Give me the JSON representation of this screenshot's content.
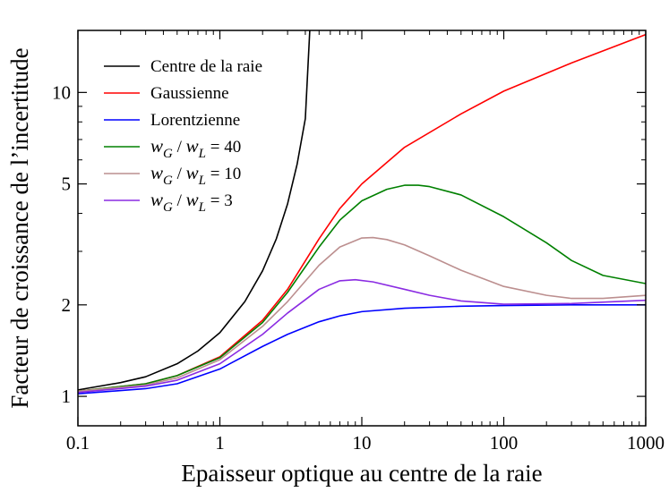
{
  "chart_data": {
    "type": "line",
    "xlabel": "Epaisseur optique au centre de la raie",
    "ylabel": "Facteur de croissance de l’incertitude",
    "xscale": "log",
    "yscale": "log",
    "xlim": [
      0.1,
      1000
    ],
    "ylim": [
      0.8,
      16
    ],
    "x_ticks": [
      {
        "value": 0.1,
        "label": "0.1"
      },
      {
        "value": 1,
        "label": "1"
      },
      {
        "value": 10,
        "label": "10"
      },
      {
        "value": 100,
        "label": "100"
      },
      {
        "value": 1000,
        "label": "1000"
      }
    ],
    "y_ticks": [
      {
        "value": 1,
        "label": "1"
      },
      {
        "value": 2,
        "label": "2"
      },
      {
        "value": 5,
        "label": "5"
      },
      {
        "value": 10,
        "label": "10"
      }
    ],
    "legend_position": "top-left",
    "series": [
      {
        "name": "Centre de la raie",
        "color": "#000000",
        "x": [
          0.1,
          0.2,
          0.3,
          0.5,
          0.7,
          1,
          1.5,
          2,
          2.5,
          3,
          3.5,
          4,
          4.3
        ],
        "y": [
          1.05,
          1.11,
          1.16,
          1.28,
          1.41,
          1.62,
          2.05,
          2.59,
          3.3,
          4.3,
          5.8,
          8.2,
          16
        ]
      },
      {
        "name": "Gaussienne",
        "color": "#ff0000",
        "legend_label": "Gaussienne",
        "x": [
          0.1,
          0.3,
          0.5,
          1,
          2,
          3,
          5,
          7,
          10,
          20,
          50,
          100,
          300,
          1000
        ],
        "y": [
          1.04,
          1.1,
          1.17,
          1.35,
          1.78,
          2.25,
          3.3,
          4.15,
          5.0,
          6.6,
          8.5,
          10.1,
          12.5,
          15.5
        ]
      },
      {
        "name": "Lorentzienne",
        "color": "#0000ff",
        "x": [
          0.1,
          0.3,
          0.5,
          1,
          2,
          3,
          5,
          7,
          10,
          20,
          50,
          100,
          300,
          1000
        ],
        "y": [
          1.02,
          1.06,
          1.1,
          1.23,
          1.46,
          1.6,
          1.76,
          1.84,
          1.9,
          1.95,
          1.98,
          1.99,
          2.0,
          2.0
        ]
      },
      {
        "name": "wG / wL = 40",
        "legend_parts": [
          "w",
          "G",
          " / ",
          "w",
          "L",
          " = 40"
        ],
        "color": "#008000",
        "x": [
          0.1,
          0.3,
          0.5,
          1,
          2,
          3,
          5,
          7,
          10,
          15,
          20,
          25,
          30,
          50,
          100,
          200,
          300,
          500,
          1000
        ],
        "y": [
          1.04,
          1.1,
          1.17,
          1.34,
          1.75,
          2.2,
          3.1,
          3.8,
          4.4,
          4.8,
          4.95,
          4.95,
          4.9,
          4.6,
          3.9,
          3.2,
          2.8,
          2.5,
          2.35
        ]
      },
      {
        "name": "wG / wL = 10",
        "legend_parts": [
          "w",
          "G",
          " / ",
          "w",
          "L",
          " = 10"
        ],
        "color": "#bc8f8f",
        "x": [
          0.1,
          0.3,
          0.5,
          1,
          2,
          3,
          5,
          7,
          10,
          12,
          15,
          20,
          30,
          50,
          100,
          200,
          300,
          500,
          1000
        ],
        "y": [
          1.04,
          1.09,
          1.15,
          1.32,
          1.7,
          2.05,
          2.7,
          3.1,
          3.32,
          3.33,
          3.28,
          3.15,
          2.9,
          2.6,
          2.3,
          2.15,
          2.1,
          2.1,
          2.15
        ]
      },
      {
        "name": "wG / wL = 3",
        "legend_parts": [
          "w",
          "G",
          " / ",
          "w",
          "L",
          " = 3"
        ],
        "color": "#8a2be2",
        "x": [
          0.1,
          0.3,
          0.5,
          1,
          2,
          3,
          5,
          7,
          9,
          12,
          20,
          30,
          50,
          100,
          300,
          1000
        ],
        "y": [
          1.03,
          1.08,
          1.13,
          1.28,
          1.6,
          1.88,
          2.25,
          2.4,
          2.42,
          2.38,
          2.25,
          2.15,
          2.06,
          2.01,
          2.02,
          2.07
        ]
      }
    ]
  }
}
